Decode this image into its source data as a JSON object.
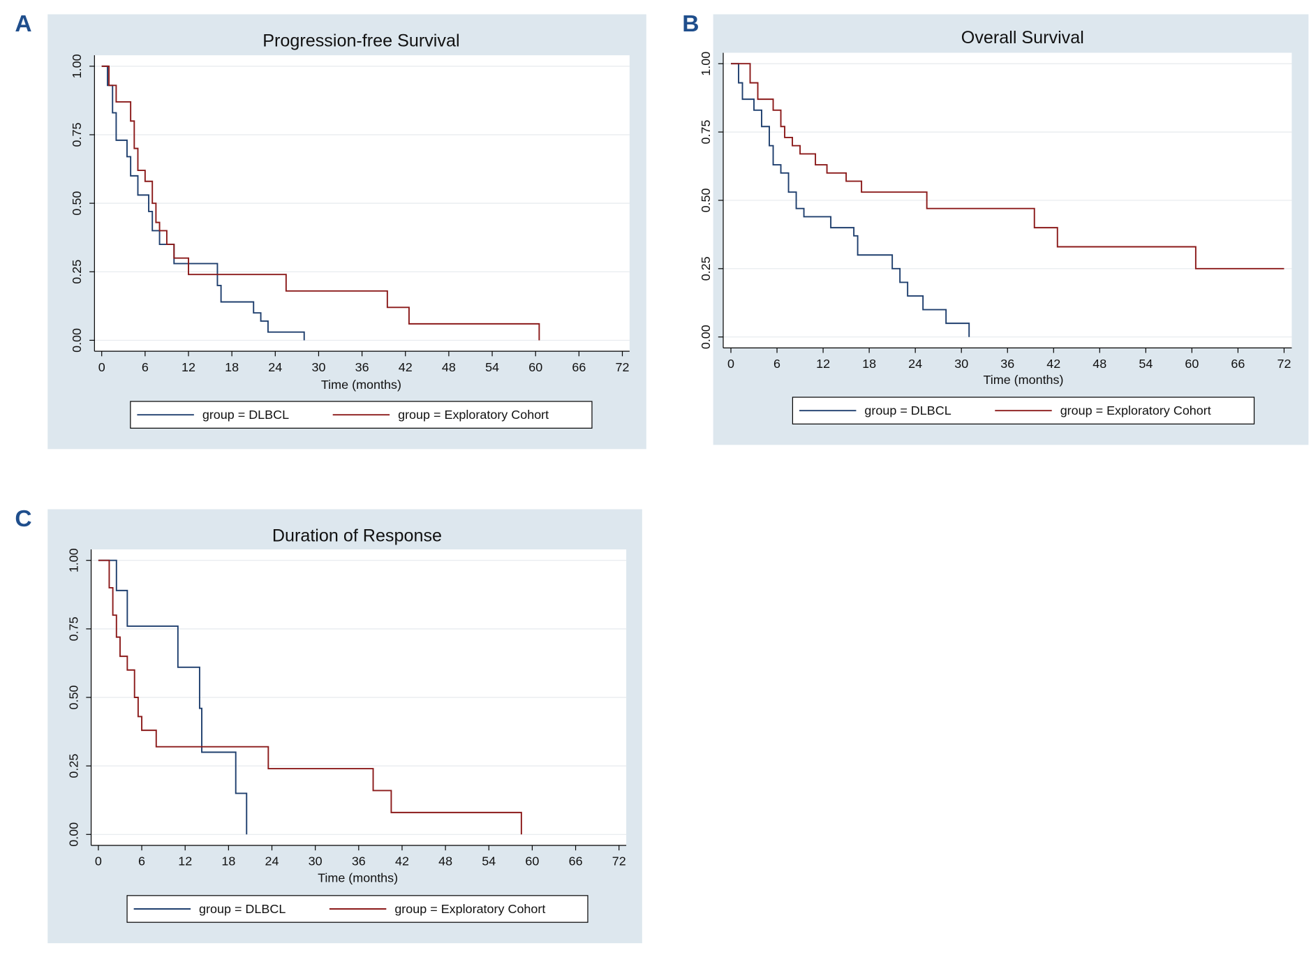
{
  "chart_data": [
    {
      "type": "step",
      "panel": "A",
      "title": "Progression-free Survival",
      "x_label": "Time (months)",
      "xlim": [
        -1,
        73
      ],
      "xticks": [
        0,
        6,
        12,
        18,
        24,
        30,
        36,
        42,
        48,
        54,
        60,
        66,
        72
      ],
      "ylim": [
        -0.04,
        1.04
      ],
      "yticks": [
        {
          "value": 0,
          "label": "0.00"
        },
        {
          "value": 0.25,
          "label": "0.25"
        },
        {
          "value": 0.5,
          "label": "0.50"
        },
        {
          "value": 0.75,
          "label": "0.75"
        },
        {
          "value": 1,
          "label": "1.00"
        }
      ],
      "grid": true,
      "series": [
        {
          "name": "group = DLBCL",
          "color": "#1f3f6e",
          "x": [
            0,
            0.8,
            1.5,
            2,
            3.5,
            4,
            5,
            6.5,
            7,
            8,
            10,
            12,
            16,
            16.5,
            21,
            22,
            23,
            28
          ],
          "values": [
            1,
            0.93,
            0.83,
            0.73,
            0.67,
            0.6,
            0.53,
            0.47,
            0.4,
            0.35,
            0.28,
            0.28,
            0.2,
            0.14,
            0.1,
            0.07,
            0.03,
            0
          ]
        },
        {
          "name": "group = Exploratory Cohort",
          "color": "#8b1a1a",
          "x": [
            0,
            1,
            2,
            4,
            4.5,
            5,
            6,
            7,
            7.5,
            8,
            9,
            10,
            12,
            25.5,
            39.5,
            42.5,
            60.5
          ],
          "values": [
            1,
            0.93,
            0.87,
            0.8,
            0.7,
            0.62,
            0.58,
            0.5,
            0.43,
            0.4,
            0.35,
            0.3,
            0.24,
            0.18,
            0.12,
            0.06,
            0
          ]
        }
      ]
    },
    {
      "type": "step",
      "panel": "B",
      "title": "Overall Survival",
      "x_label": "Time (months)",
      "xlim": [
        -1,
        73
      ],
      "xticks": [
        0,
        6,
        12,
        18,
        24,
        30,
        36,
        42,
        48,
        54,
        60,
        66,
        72
      ],
      "ylim": [
        -0.04,
        1.04
      ],
      "yticks": [
        {
          "value": 0,
          "label": "0.00"
        },
        {
          "value": 0.25,
          "label": "0.25"
        },
        {
          "value": 0.5,
          "label": "0.50"
        },
        {
          "value": 0.75,
          "label": "0.75"
        },
        {
          "value": 1,
          "label": "1.00"
        }
      ],
      "grid": true,
      "series": [
        {
          "name": "group = DLBCL",
          "color": "#1f3f6e",
          "x": [
            0,
            1,
            1.5,
            3,
            4,
            5,
            5.5,
            6.5,
            7.5,
            8.5,
            9.5,
            13,
            16,
            16.5,
            21,
            22,
            23,
            25,
            28,
            31
          ],
          "values": [
            1,
            0.93,
            0.87,
            0.83,
            0.77,
            0.7,
            0.63,
            0.6,
            0.53,
            0.47,
            0.44,
            0.4,
            0.37,
            0.3,
            0.25,
            0.2,
            0.15,
            0.1,
            0.05,
            0
          ]
        },
        {
          "name": "group = Exploratory Cohort",
          "color": "#8b1a1a",
          "x": [
            0,
            2.5,
            3.5,
            5.5,
            6.5,
            7,
            8,
            9,
            11,
            12.5,
            15,
            17,
            25.5,
            39.5,
            42.5,
            60.5,
            72
          ],
          "values": [
            1,
            0.93,
            0.87,
            0.83,
            0.77,
            0.73,
            0.7,
            0.67,
            0.63,
            0.6,
            0.57,
            0.53,
            0.47,
            0.4,
            0.33,
            0.25,
            0.25
          ]
        }
      ]
    },
    {
      "type": "step",
      "panel": "C",
      "title": "Duration of Response",
      "x_label": "Time (months)",
      "xlim": [
        -1,
        73
      ],
      "xticks": [
        0,
        6,
        12,
        18,
        24,
        30,
        36,
        42,
        48,
        54,
        60,
        66,
        72
      ],
      "ylim": [
        -0.04,
        1.04
      ],
      "yticks": [
        {
          "value": 0,
          "label": "0.00"
        },
        {
          "value": 0.25,
          "label": "0.25"
        },
        {
          "value": 0.5,
          "label": "0.50"
        },
        {
          "value": 0.75,
          "label": "0.75"
        },
        {
          "value": 1,
          "label": "1.00"
        }
      ],
      "grid": true,
      "series": [
        {
          "name": "group = DLBCL",
          "color": "#1f3f6e",
          "x": [
            0,
            2.5,
            4,
            11,
            14,
            14.3,
            19,
            20.5
          ],
          "values": [
            1,
            0.89,
            0.76,
            0.61,
            0.46,
            0.3,
            0.15,
            0
          ]
        },
        {
          "name": "group = Exploratory Cohort",
          "color": "#8b1a1a",
          "x": [
            0,
            1.5,
            2,
            2.5,
            3,
            4,
            5,
            5.5,
            6,
            8,
            23.5,
            38,
            40.5,
            58.5
          ],
          "values": [
            1,
            0.9,
            0.8,
            0.72,
            0.65,
            0.6,
            0.5,
            0.43,
            0.38,
            0.32,
            0.24,
            0.16,
            0.08,
            0
          ]
        }
      ]
    }
  ]
}
